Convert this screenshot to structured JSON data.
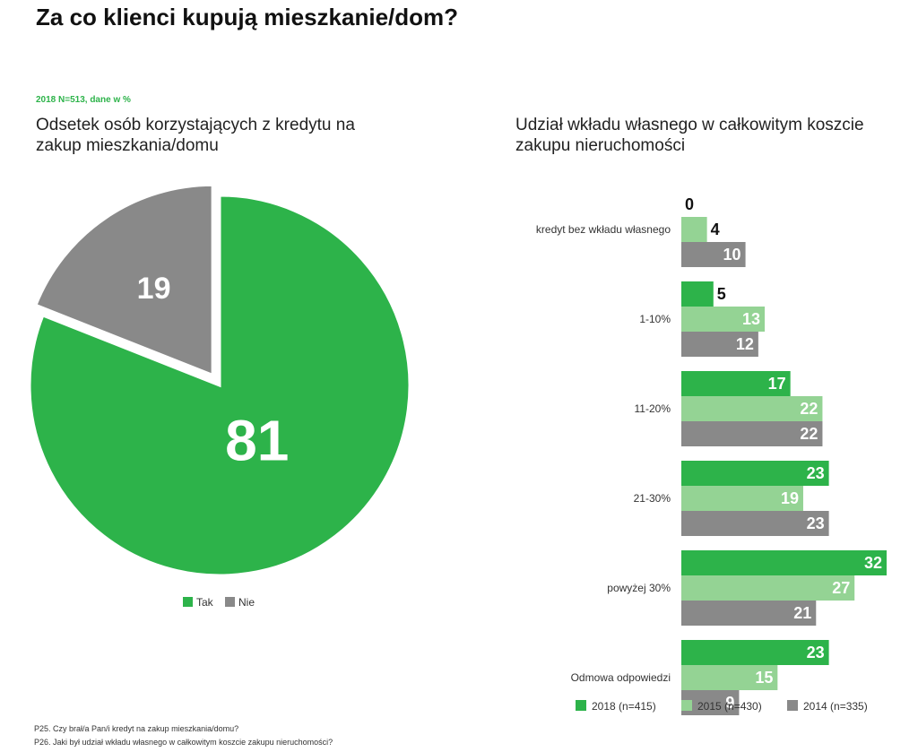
{
  "page": {
    "title": "Za co klienci kupują mieszkanie/dom?",
    "sample_note": "2018 N=513, dane w %",
    "footnotes": [
      "P25. Czy brał/a Pan/i kredyt na zakup mieszkania/domu?",
      "P26. Jaki był udział wkładu własnego w całkowitym koszcie zakupu nieruchomości?"
    ]
  },
  "colors": {
    "green": "#2db34a",
    "light_green": "#94d394",
    "gray": "#898989",
    "text": "#1a1a1a"
  },
  "chart_data": [
    {
      "type": "pie",
      "title": "Odsetek osób korzystających z kredytu na zakup mieszkania/domu",
      "slices": [
        {
          "label": "Tak",
          "value": 81,
          "color": "#2db34a"
        },
        {
          "label": "Nie",
          "value": 19,
          "color": "#898989"
        }
      ],
      "legend": [
        "Tak",
        "Nie"
      ],
      "legend_position": "bottom"
    },
    {
      "type": "bar",
      "orientation": "horizontal",
      "title": "Udział wkładu własnego w całkowitym koszcie zakupu nieruchomości",
      "categories": [
        "kredyt bez wkładu własnego",
        "1-10%",
        "11-20%",
        "21-30%",
        "powyżej 30%",
        "Odmowa odpowiedzi"
      ],
      "series": [
        {
          "name": "2018 (n=415)",
          "color": "#2db34a",
          "values": [
            0,
            5,
            17,
            23,
            32,
            23
          ]
        },
        {
          "name": "2015 (n=430)",
          "color": "#94d394",
          "values": [
            4,
            13,
            22,
            19,
            27,
            15
          ]
        },
        {
          "name": "2014 (n=335)",
          "color": "#898989",
          "values": [
            10,
            12,
            22,
            23,
            21,
            9
          ]
        }
      ],
      "xlim": [
        0,
        32
      ],
      "legend_position": "bottom"
    }
  ]
}
